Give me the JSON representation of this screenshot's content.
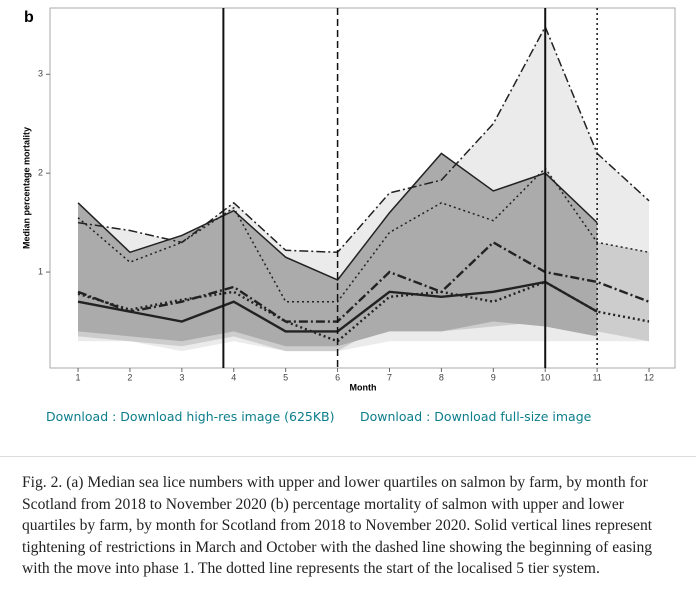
{
  "chart_data": {
    "type": "band-line",
    "panel_label": "b",
    "y_label": "Median percentage mortality",
    "x_label": "Month",
    "x": [
      1,
      2,
      3,
      4,
      5,
      6,
      7,
      8,
      9,
      10,
      11,
      12
    ],
    "xlim": [
      0.46,
      12.5
    ],
    "xticks": [
      1,
      2,
      3,
      4,
      5,
      6,
      7,
      8,
      9,
      10,
      11,
      12
    ],
    "ylim": [
      0.03,
      3.67
    ],
    "yticks": [
      1,
      2,
      3
    ],
    "series": [
      {
        "color": "#ebebeb",
        "style": "dashdot",
        "upper": [
          1.5,
          1.42,
          1.3,
          1.7,
          1.22,
          1.2,
          1.8,
          1.93,
          2.5,
          3.48,
          2.2,
          1.72
        ],
        "median": [
          0.8,
          0.6,
          0.7,
          0.85,
          0.5,
          0.5,
          1.0,
          0.8,
          1.3,
          1.0,
          0.9,
          0.7
        ],
        "lower": [
          0.3,
          0.3,
          0.2,
          0.3,
          0.2,
          0.2,
          0.3,
          0.3,
          0.3,
          0.3,
          0.3,
          0.3
        ]
      },
      {
        "color": "#cdcdcd",
        "style": "dotted",
        "upper": [
          1.55,
          1.1,
          1.3,
          1.65,
          0.7,
          0.7,
          1.4,
          1.7,
          1.52,
          2.05,
          1.3,
          1.2
        ],
        "median": [
          0.78,
          0.62,
          0.72,
          0.8,
          0.5,
          0.3,
          0.75,
          0.8,
          0.7,
          0.9,
          0.6,
          0.5
        ],
        "lower": [
          0.35,
          0.3,
          0.25,
          0.35,
          0.2,
          0.2,
          0.5,
          0.4,
          0.45,
          0.5,
          0.4,
          0.3
        ]
      },
      {
        "color": "#ababab",
        "style": "solid",
        "upper": [
          1.7,
          1.2,
          1.37,
          1.62,
          1.15,
          0.92,
          1.6,
          2.2,
          1.82,
          2.0,
          1.5,
          null
        ],
        "median": [
          0.7,
          0.6,
          0.5,
          0.7,
          0.4,
          0.4,
          0.8,
          0.75,
          0.8,
          0.9,
          0.6,
          null
        ],
        "lower": [
          0.4,
          0.35,
          0.3,
          0.4,
          0.25,
          0.25,
          0.4,
          0.4,
          0.5,
          0.45,
          0.35,
          null
        ]
      }
    ],
    "vlines": [
      {
        "x": 3.8,
        "style": "solid"
      },
      {
        "x": 6,
        "style": "dashed"
      },
      {
        "x": 10,
        "style": "solid"
      },
      {
        "x": 11,
        "style": "dotted"
      }
    ]
  },
  "links": [
    "Download : Download high-res image (625KB)",
    "Download : Download full-size image"
  ],
  "caption": "Fig. 2. (a) Median sea lice numbers with upper and lower quartiles on salmon by farm, by month for Scotland from 2018 to November 2020 (b) percentage mortality of salmon with upper and lower quartiles by farm, by month for Scotland from 2018 to November 2020. Solid vertical lines represent tightening of restrictions in March and October with the dashed line showing the beginning of easing with the move into phase 1. The dotted line represents the start of the localised 5 tier system."
}
